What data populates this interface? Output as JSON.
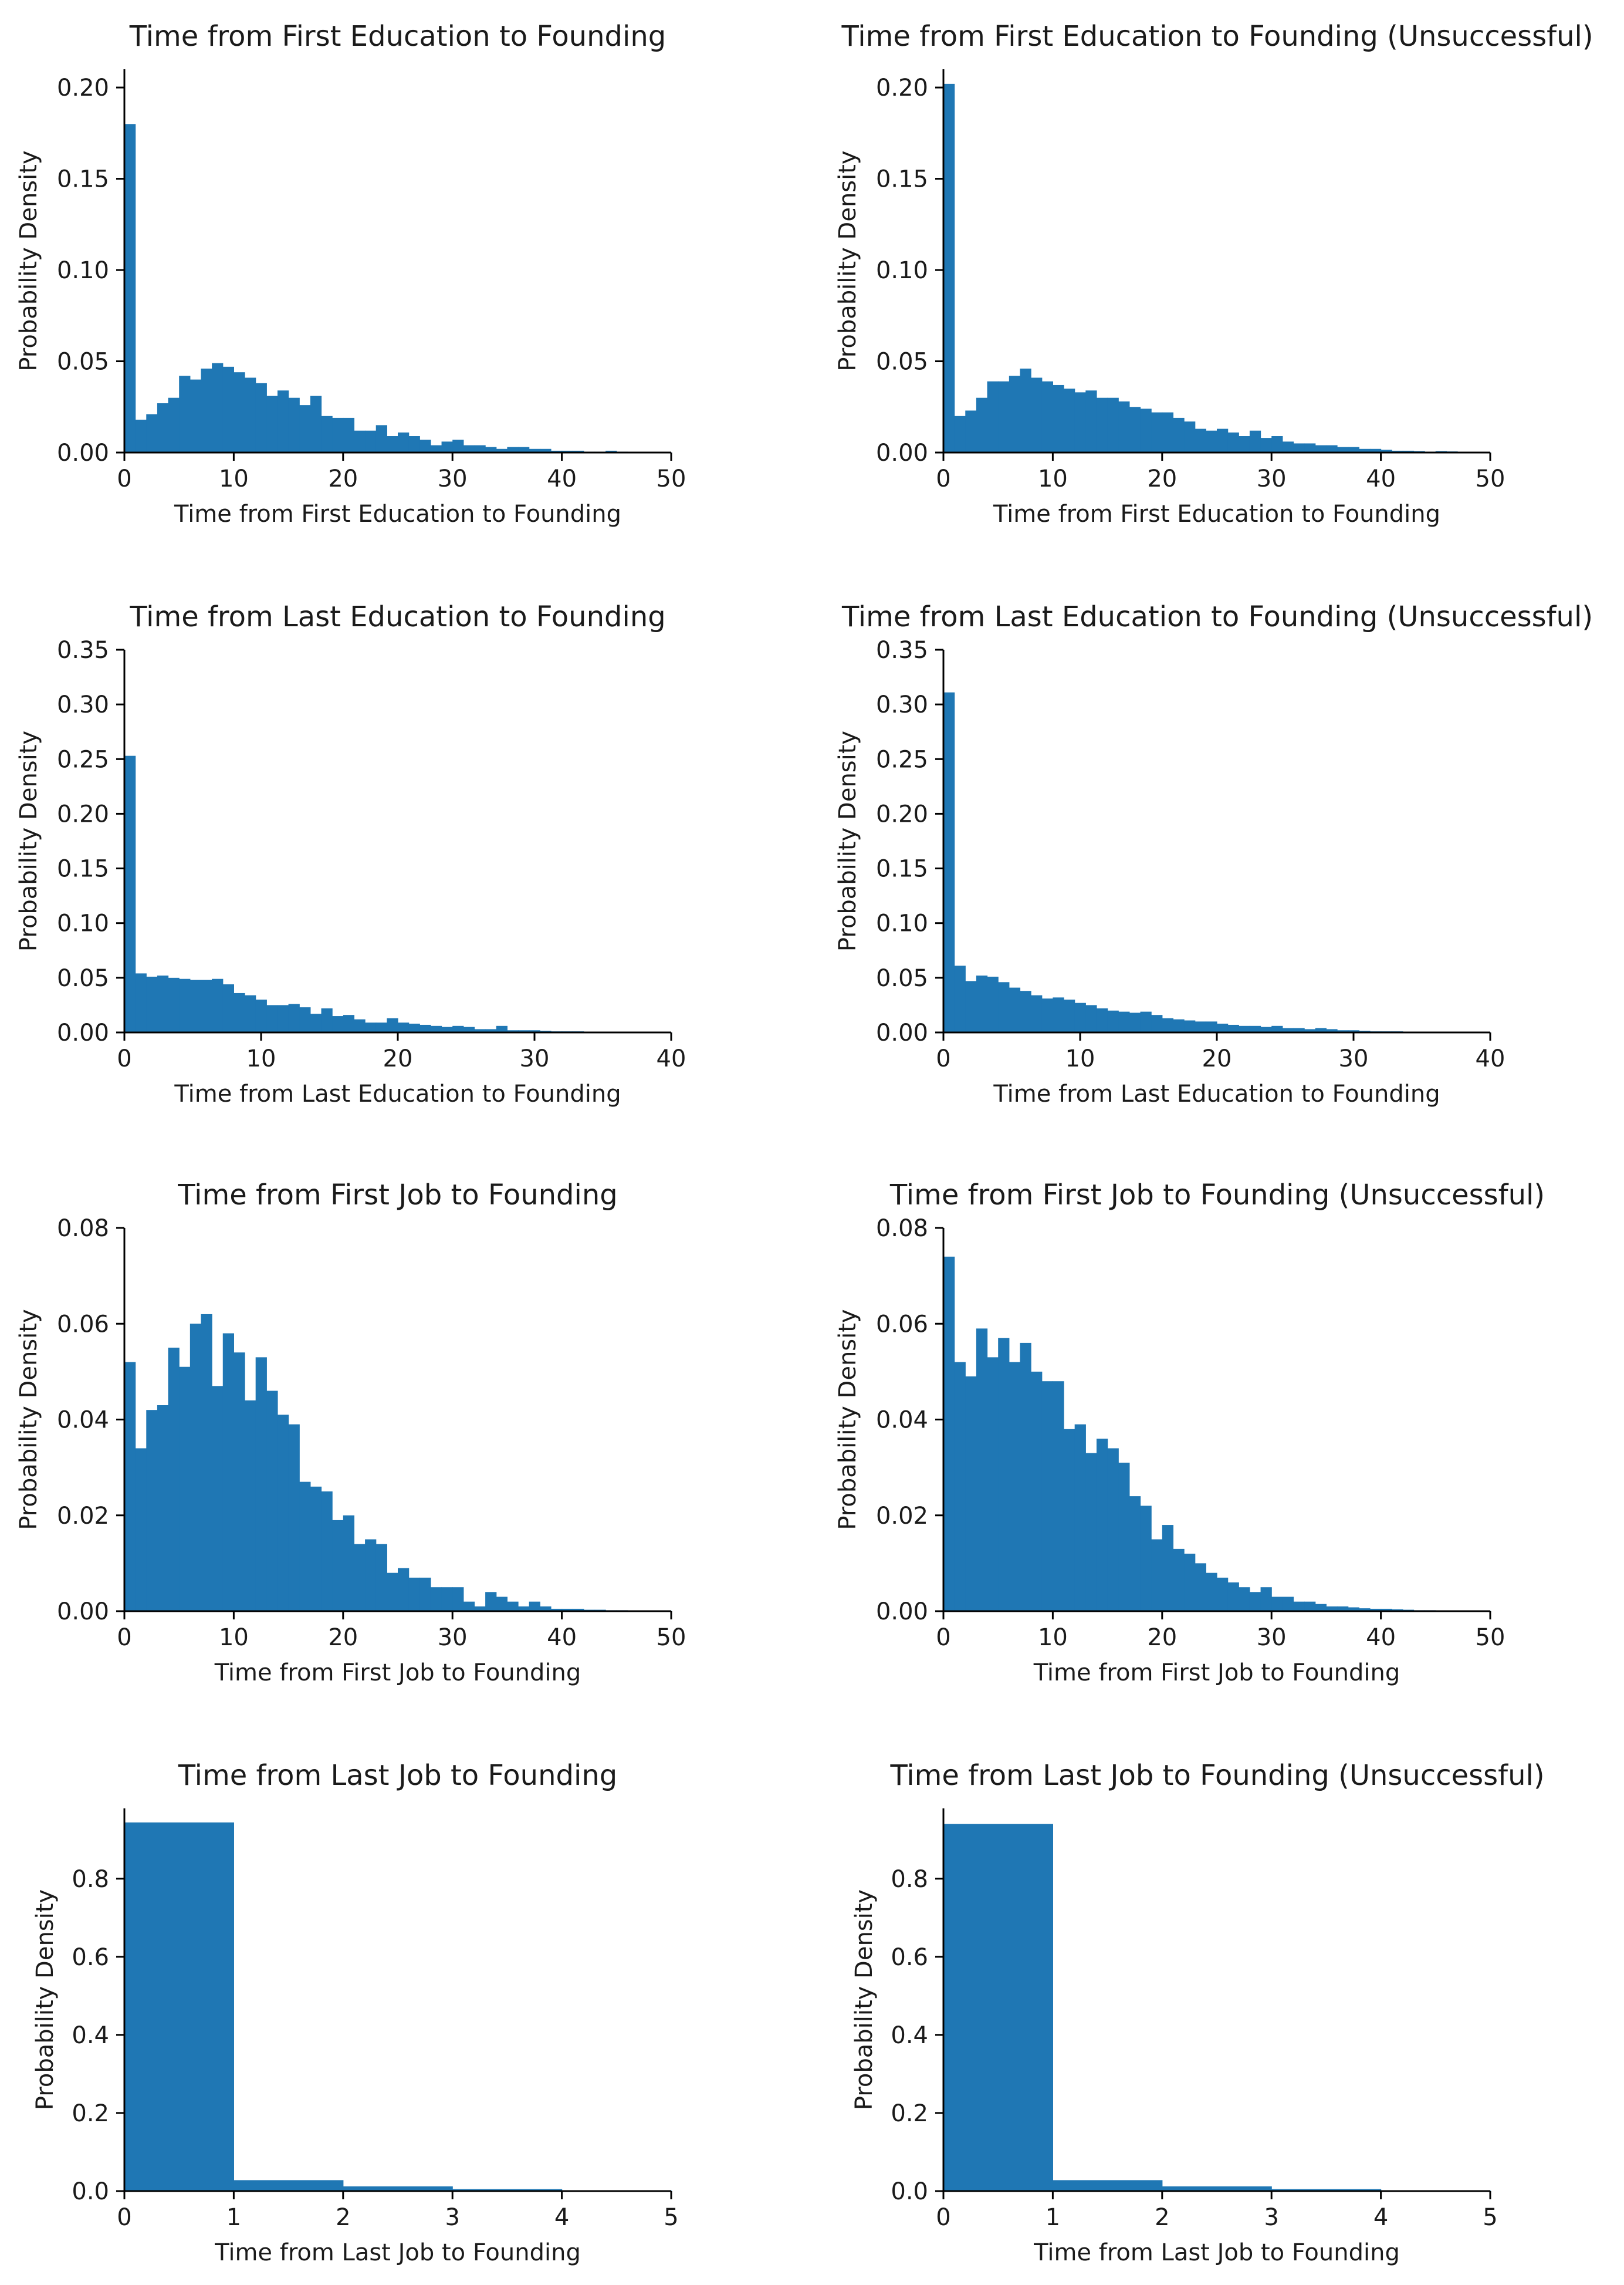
{
  "figure": {
    "bar_color": "#1f77b4"
  },
  "chart_data": [
    {
      "type": "bar",
      "title": "Time from First Education to Founding",
      "xlabel": "Time from First Education to Founding",
      "ylabel": "Probability Density",
      "xlim": [
        0,
        50
      ],
      "ylim": [
        0,
        0.21
      ],
      "xticks": [
        0,
        10,
        20,
        30,
        40,
        50
      ],
      "yticks": [
        0.0,
        0.05,
        0.1,
        0.15,
        0.2
      ],
      "ytick_labels": [
        "0.00",
        "0.05",
        "0.10",
        "0.15",
        "0.20"
      ],
      "bin_width": 1,
      "values": [
        0.18,
        0.018,
        0.021,
        0.027,
        0.03,
        0.042,
        0.04,
        0.046,
        0.049,
        0.047,
        0.044,
        0.041,
        0.038,
        0.031,
        0.034,
        0.03,
        0.026,
        0.031,
        0.02,
        0.019,
        0.019,
        0.012,
        0.012,
        0.015,
        0.009,
        0.011,
        0.009,
        0.007,
        0.004,
        0.006,
        0.007,
        0.004,
        0.004,
        0.003,
        0.002,
        0.003,
        0.003,
        0.002,
        0.002,
        0.001,
        0.001,
        0.001,
        0.0005,
        0.0005,
        0.001,
        0.0005,
        0.0003,
        0.0002,
        0.0001,
        0.0001
      ]
    },
    {
      "type": "bar",
      "title": "Time from First Education to Founding (Unsuccessful)",
      "xlabel": "Time from First Education to Founding",
      "ylabel": "Probability Density",
      "xlim": [
        0,
        50
      ],
      "ylim": [
        0,
        0.21
      ],
      "xticks": [
        0,
        10,
        20,
        30,
        40,
        50
      ],
      "yticks": [
        0.0,
        0.05,
        0.1,
        0.15,
        0.2
      ],
      "ytick_labels": [
        "0.00",
        "0.05",
        "0.10",
        "0.15",
        "0.20"
      ],
      "bin_width": 1,
      "values": [
        0.202,
        0.02,
        0.023,
        0.03,
        0.039,
        0.039,
        0.042,
        0.046,
        0.041,
        0.039,
        0.037,
        0.035,
        0.033,
        0.034,
        0.03,
        0.03,
        0.028,
        0.025,
        0.024,
        0.022,
        0.022,
        0.019,
        0.017,
        0.013,
        0.012,
        0.013,
        0.011,
        0.009,
        0.012,
        0.008,
        0.009,
        0.006,
        0.005,
        0.005,
        0.004,
        0.004,
        0.003,
        0.003,
        0.002,
        0.002,
        0.0015,
        0.001,
        0.001,
        0.0008,
        0.0005,
        0.0008,
        0.0006,
        0.0003,
        0.0002,
        0.0001
      ]
    },
    {
      "type": "bar",
      "title": "Time from Last Education to Founding",
      "xlabel": "Time from Last Education to Founding",
      "ylabel": "Probability Density",
      "xlim": [
        0,
        40
      ],
      "ylim": [
        0,
        0.35
      ],
      "xticks": [
        0,
        10,
        20,
        30,
        40
      ],
      "yticks": [
        0.0,
        0.05,
        0.1,
        0.15,
        0.2,
        0.25,
        0.3,
        0.35
      ],
      "ytick_labels": [
        "0.00",
        "0.05",
        "0.10",
        "0.15",
        "0.20",
        "0.25",
        "0.30",
        "0.35"
      ],
      "bin_width": 0.8,
      "values": [
        0.253,
        0.054,
        0.051,
        0.052,
        0.05,
        0.049,
        0.048,
        0.048,
        0.049,
        0.044,
        0.036,
        0.034,
        0.03,
        0.025,
        0.025,
        0.026,
        0.023,
        0.017,
        0.022,
        0.015,
        0.016,
        0.012,
        0.009,
        0.009,
        0.013,
        0.009,
        0.008,
        0.007,
        0.006,
        0.005,
        0.006,
        0.005,
        0.003,
        0.003,
        0.006,
        0.002,
        0.002,
        0.002,
        0.0015,
        0.001,
        0.001,
        0.001,
        0.0008,
        0.0006,
        0.0005,
        0.0004,
        0.0003,
        0.0002,
        0.0001,
        0.0001
      ]
    },
    {
      "type": "bar",
      "title": "Time from Last Education to Founding (Unsuccessful)",
      "xlabel": "Time from Last Education to Founding",
      "ylabel": "Probability Density",
      "xlim": [
        0,
        40
      ],
      "ylim": [
        0,
        0.35
      ],
      "xticks": [
        0,
        10,
        20,
        30,
        40
      ],
      "yticks": [
        0.0,
        0.05,
        0.1,
        0.15,
        0.2,
        0.25,
        0.3,
        0.35
      ],
      "ytick_labels": [
        "0.00",
        "0.05",
        "0.10",
        "0.15",
        "0.20",
        "0.25",
        "0.30",
        "0.35"
      ],
      "bin_width": 0.8,
      "values": [
        0.311,
        0.061,
        0.047,
        0.052,
        0.051,
        0.046,
        0.041,
        0.038,
        0.034,
        0.031,
        0.032,
        0.03,
        0.027,
        0.025,
        0.022,
        0.02,
        0.019,
        0.018,
        0.019,
        0.016,
        0.013,
        0.012,
        0.011,
        0.01,
        0.01,
        0.008,
        0.007,
        0.006,
        0.006,
        0.005,
        0.006,
        0.004,
        0.004,
        0.003,
        0.004,
        0.003,
        0.002,
        0.002,
        0.0015,
        0.001,
        0.001,
        0.001,
        0.0008,
        0.0006,
        0.0005,
        0.0004,
        0.0003,
        0.0002,
        0.0001,
        0.0001
      ]
    },
    {
      "type": "bar",
      "title": "Time from First Job to Founding",
      "xlabel": "Time from First Job to Founding",
      "ylabel": "Probability Density",
      "xlim": [
        0,
        50
      ],
      "ylim": [
        0,
        0.08
      ],
      "xticks": [
        0,
        10,
        20,
        30,
        40,
        50
      ],
      "yticks": [
        0.0,
        0.02,
        0.04,
        0.06,
        0.08
      ],
      "ytick_labels": [
        "0.00",
        "0.02",
        "0.04",
        "0.06",
        "0.08"
      ],
      "bin_width": 1,
      "values": [
        0.052,
        0.034,
        0.042,
        0.043,
        0.055,
        0.051,
        0.06,
        0.062,
        0.047,
        0.058,
        0.054,
        0.044,
        0.053,
        0.046,
        0.041,
        0.039,
        0.027,
        0.026,
        0.025,
        0.019,
        0.02,
        0.014,
        0.015,
        0.014,
        0.008,
        0.009,
        0.007,
        0.007,
        0.005,
        0.005,
        0.005,
        0.002,
        0.001,
        0.004,
        0.003,
        0.002,
        0.001,
        0.002,
        0.001,
        0.0005,
        0.0005,
        0.0005,
        0.0003,
        0.0003,
        0.0002,
        0.0002,
        0.0001,
        0.0001,
        0.0001,
        0.0001
      ]
    },
    {
      "type": "bar",
      "title": "Time from First Job to Founding (Unsuccessful)",
      "xlabel": "Time from First Job to Founding",
      "ylabel": "Probability Density",
      "xlim": [
        0,
        50
      ],
      "ylim": [
        0,
        0.08
      ],
      "xticks": [
        0,
        10,
        20,
        30,
        40,
        50
      ],
      "yticks": [
        0.0,
        0.02,
        0.04,
        0.06,
        0.08
      ],
      "ytick_labels": [
        "0.00",
        "0.02",
        "0.04",
        "0.06",
        "0.08"
      ],
      "bin_width": 1,
      "values": [
        0.074,
        0.052,
        0.049,
        0.059,
        0.053,
        0.057,
        0.052,
        0.056,
        0.05,
        0.048,
        0.048,
        0.038,
        0.039,
        0.033,
        0.036,
        0.034,
        0.031,
        0.024,
        0.022,
        0.015,
        0.018,
        0.013,
        0.012,
        0.01,
        0.008,
        0.007,
        0.006,
        0.005,
        0.004,
        0.005,
        0.003,
        0.003,
        0.002,
        0.002,
        0.0015,
        0.001,
        0.001,
        0.0008,
        0.0006,
        0.0005,
        0.0005,
        0.0004,
        0.0003,
        0.0002,
        0.0002,
        0.0001,
        0.0001,
        0.0001,
        0.0001,
        0.0001
      ]
    },
    {
      "type": "bar",
      "title": "Time from Last Job to Founding",
      "xlabel": "Time from Last Job to Founding",
      "ylabel": "Probability Density",
      "xlim": [
        0,
        5
      ],
      "ylim": [
        0,
        0.98
      ],
      "xticks": [
        0,
        1,
        2,
        3,
        4,
        5
      ],
      "yticks": [
        0.0,
        0.2,
        0.4,
        0.6,
        0.8
      ],
      "ytick_labels": [
        "0.0",
        "0.2",
        "0.4",
        "0.6",
        "0.8"
      ],
      "bin_width": 1,
      "values": [
        0.944,
        0.028,
        0.012,
        0.005,
        0.002
      ]
    },
    {
      "type": "bar",
      "title": "Time from Last Job to Founding (Unsuccessful)",
      "xlabel": "Time from Last Job to Founding",
      "ylabel": "Probability Density",
      "xlim": [
        0,
        5
      ],
      "ylim": [
        0,
        0.98
      ],
      "xticks": [
        0,
        1,
        2,
        3,
        4,
        5
      ],
      "yticks": [
        0.0,
        0.2,
        0.4,
        0.6,
        0.8
      ],
      "ytick_labels": [
        "0.0",
        "0.2",
        "0.4",
        "0.6",
        "0.8"
      ],
      "bin_width": 1,
      "values": [
        0.94,
        0.028,
        0.012,
        0.005,
        0.002
      ]
    }
  ]
}
